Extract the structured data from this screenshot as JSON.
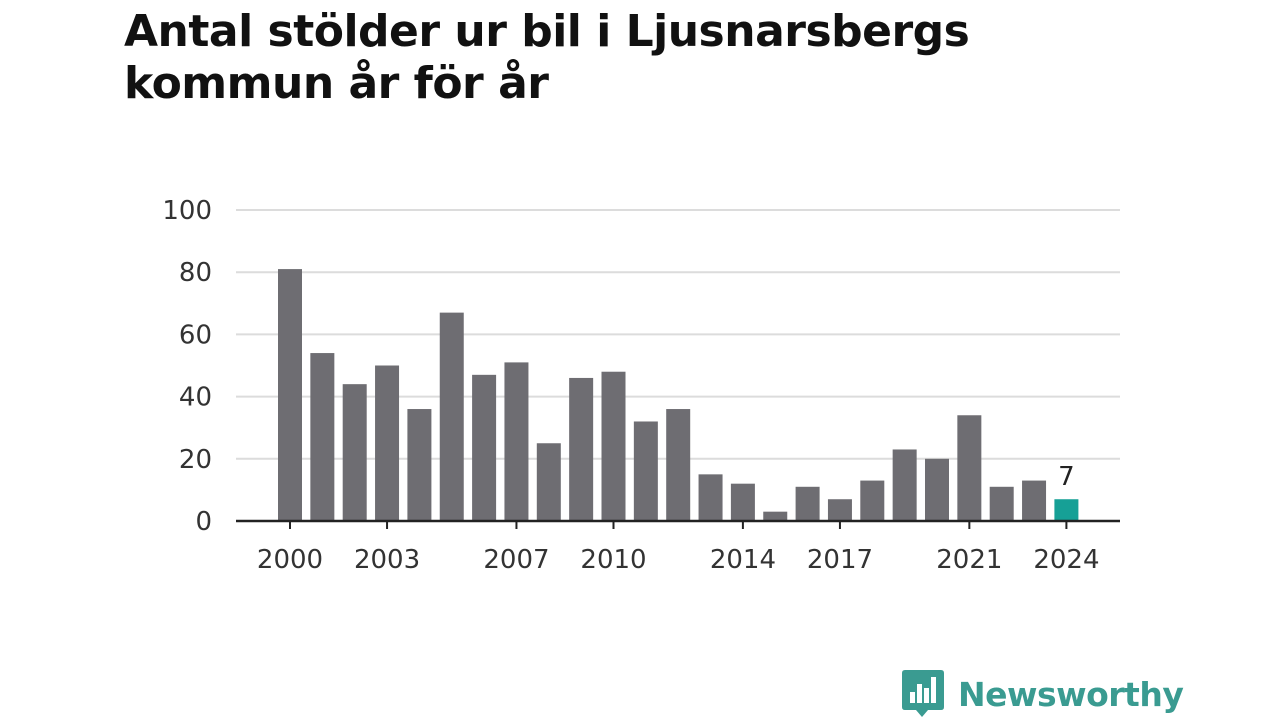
{
  "chart_data": {
    "type": "bar",
    "title": "Antal stölder ur bil i Ljusnarsbergs kommun år för år",
    "categories": [
      "2000",
      "2001",
      "2002",
      "2003",
      "2004",
      "2005",
      "2006",
      "2007",
      "2008",
      "2009",
      "2010",
      "2011",
      "2012",
      "2013",
      "2014",
      "2015",
      "2016",
      "2017",
      "2018",
      "2019",
      "2020",
      "2021",
      "2022",
      "2023",
      "2024"
    ],
    "values": [
      81,
      54,
      44,
      50,
      36,
      67,
      47,
      51,
      25,
      46,
      48,
      32,
      36,
      15,
      12,
      3,
      11,
      7,
      13,
      23,
      20,
      34,
      11,
      13,
      7
    ],
    "x_tick_labels": [
      "2000",
      "2003",
      "2007",
      "2010",
      "2014",
      "2017",
      "2021",
      "2024"
    ],
    "y_ticks": [
      0,
      20,
      40,
      60,
      80,
      100
    ],
    "ylim": [
      0,
      100
    ],
    "xlabel": "",
    "ylabel": "",
    "grid": true,
    "highlight": {
      "category": "2024",
      "label": "7"
    },
    "colors": {
      "bar": "#6e6d72",
      "highlight": "#16a096",
      "grid": "#dcdcdc",
      "axis": "#222222"
    }
  },
  "brand": {
    "name": "Newsworthy",
    "logo_icon": "newsworthy-chart-bubble-icon",
    "color": "#3a9b91"
  }
}
